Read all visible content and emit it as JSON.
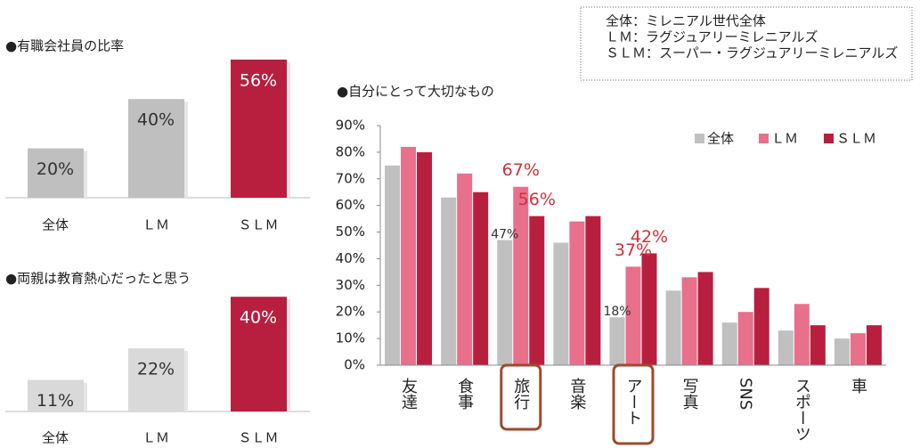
{
  "chart_data": [
    {
      "type": "bar",
      "title": "●有職会社員の比率",
      "categories": [
        "全体",
        "ＬＭ",
        "ＳＬＭ"
      ],
      "values": [
        20,
        40,
        56
      ],
      "value_labels": [
        "20%",
        "40%",
        "56%"
      ],
      "colors": [
        "#bfbfbf",
        "#bfbfbf",
        "#b81f3f"
      ],
      "label_colors": [
        "#333333",
        "#333333",
        "#ffffff"
      ]
    },
    {
      "type": "bar",
      "title": "●両親は教育熱心だったと思う",
      "categories": [
        "全体",
        "ＬＭ",
        "ＳＬＭ"
      ],
      "values": [
        11,
        22,
        40
      ],
      "value_labels": [
        "11%",
        "22%",
        "40%"
      ],
      "colors": [
        "#d9d9d9",
        "#d9d9d9",
        "#b81f3f"
      ],
      "label_colors": [
        "#333333",
        "#333333",
        "#ffffff"
      ]
    },
    {
      "type": "grouped_bar",
      "title": "●自分にとって大切なもの",
      "categories": [
        "友達",
        "食事",
        "旅行",
        "音楽",
        "アート",
        "写真",
        "SNS",
        "スポーツ",
        "車"
      ],
      "series": [
        {
          "name": "全体",
          "color": "#c0c0c0",
          "label_color": "#333333",
          "values": [
            75,
            63,
            47,
            46,
            18,
            28,
            16,
            13,
            10
          ],
          "value_labels": [
            null,
            null,
            "47%",
            null,
            "18%",
            null,
            null,
            null,
            null
          ]
        },
        {
          "name": "ＬＭ",
          "color": "#e8708a",
          "label_color": "#d0303c",
          "values": [
            82,
            72,
            67,
            54,
            37,
            33,
            20,
            23,
            12
          ],
          "value_labels": [
            null,
            null,
            "67%",
            null,
            "37%",
            null,
            null,
            null,
            null
          ]
        },
        {
          "name": "ＳＬＭ",
          "color": "#b81f3f",
          "label_color": "#d0303c",
          "values": [
            80,
            65,
            56,
            56,
            42,
            35,
            29,
            15,
            15
          ],
          "value_labels": [
            null,
            null,
            "56%",
            null,
            "42%",
            null,
            null,
            null,
            null
          ]
        }
      ],
      "ylim": [
        0,
        90
      ],
      "yticks": [
        {
          "value": 0,
          "label": "0%"
        },
        {
          "value": 10,
          "label": "10%"
        },
        {
          "value": 20,
          "label": "20%"
        },
        {
          "value": 30,
          "label": "30%"
        },
        {
          "value": 40,
          "label": "40%"
        },
        {
          "value": 50,
          "label": "50%"
        },
        {
          "value": 60,
          "label": "60%"
        },
        {
          "value": 70,
          "label": "70%"
        },
        {
          "value": 80,
          "label": "80%"
        },
        {
          "value": 90,
          "label": "90%"
        }
      ],
      "legend": "upper right",
      "highlight": [
        2,
        4
      ],
      "highlight_color": "#9c4a2e",
      "note": [
        "全体：ミレニアル世代全体",
        "ＬＭ：ラグジュアリーミレニアルズ",
        "ＳＬＭ：スーパー・ラグジュアリーミレニアルズ"
      ]
    }
  ]
}
